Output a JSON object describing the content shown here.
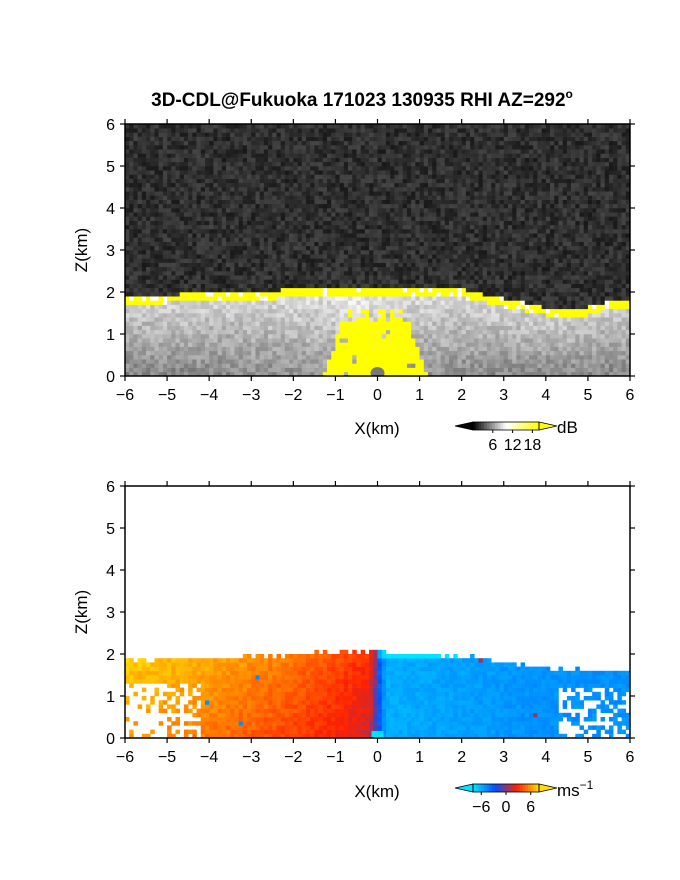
{
  "figure": {
    "title": "3D-CDL@Fukuoka 171023 130935 RHI AZ=292",
    "title_superscript": "o"
  },
  "chart_data": [
    {
      "type": "heatmap",
      "panel": "backscatter",
      "xlabel": "X(km)",
      "ylabel": "Z(km)",
      "xlim": [
        -6,
        6
      ],
      "ylim": [
        0,
        6
      ],
      "xticks": [
        "−6",
        "−5",
        "−4",
        "−3",
        "−2",
        "−1",
        "0",
        "1",
        "2",
        "3",
        "4",
        "5",
        "6"
      ],
      "yticks": [
        "0",
        "1",
        "2",
        "3",
        "4",
        "5",
        "6"
      ],
      "colorbar": {
        "unit": "dB",
        "ticks": [
          "6",
          "12",
          "18"
        ],
        "range": [
          0,
          20
        ],
        "colors": [
          "#000000",
          "#ffffff",
          "#ffff00"
        ]
      },
      "noise_color": "#2a2a2a",
      "boundary_layer_top": {
        "x": [
          -6,
          -5,
          -4,
          -3,
          -2,
          -1,
          0,
          1,
          2,
          3,
          4,
          4.5,
          5,
          5.5,
          6
        ],
        "z": [
          1.8,
          1.85,
          1.88,
          1.9,
          1.98,
          2.0,
          2.0,
          2.0,
          1.98,
          1.75,
          1.55,
          1.45,
          1.55,
          1.7,
          1.7
        ]
      },
      "saturated_core": {
        "x_range": [
          -1.3,
          1.2
        ],
        "z_top": 1.3
      }
    },
    {
      "type": "heatmap",
      "panel": "radial_velocity",
      "xlabel": "X(km)",
      "ylabel": "Z(km)",
      "xlim": [
        -6,
        6
      ],
      "ylim": [
        0,
        6
      ],
      "xticks": [
        "−6",
        "−5",
        "−4",
        "−3",
        "−2",
        "−1",
        "0",
        "1",
        "2",
        "3",
        "4",
        "5",
        "6"
      ],
      "yticks": [
        "0",
        "1",
        "2",
        "3",
        "4",
        "5",
        "6"
      ],
      "colorbar": {
        "unit": "ms",
        "unit_superscript": "−1",
        "ticks": [
          "−6",
          "0",
          "6"
        ],
        "range": [
          -8,
          8
        ],
        "colors": [
          "#00e5ff",
          "#0050ff",
          "#ff2000",
          "#ffe000"
        ]
      },
      "velocity_profile": {
        "x": [
          -6,
          -4,
          -2,
          -0.2,
          0.2,
          2,
          4,
          6
        ],
        "v": [
          6,
          5,
          3.5,
          1.5,
          -6,
          -5.5,
          -5,
          -5
        ]
      },
      "data_top": {
        "x": [
          -6,
          -5,
          -4,
          -3,
          -2,
          -1,
          0,
          1,
          2,
          3,
          4,
          5,
          6
        ],
        "z": [
          1.85,
          1.9,
          1.9,
          1.95,
          2.0,
          2.05,
          2.05,
          2.0,
          1.95,
          1.8,
          1.65,
          1.6,
          1.6
        ]
      }
    }
  ]
}
